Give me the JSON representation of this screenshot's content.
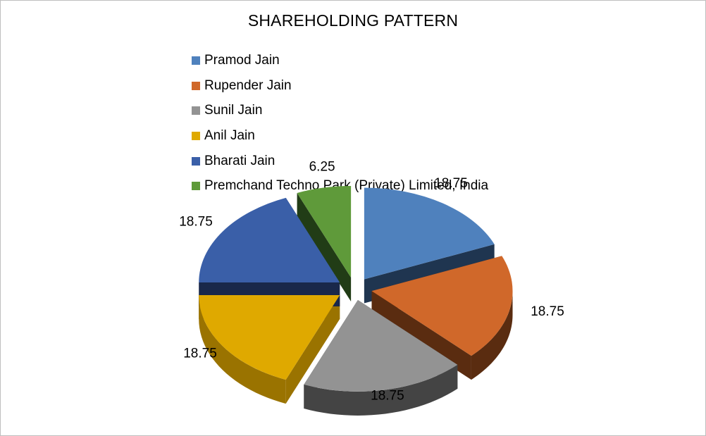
{
  "chart_data": {
    "type": "pie",
    "title": "SHAREHOLDING PATTERN",
    "three_d": true,
    "exploded": true,
    "legend_position": "top",
    "categories": [
      "Pramod Jain",
      "Rupender Jain",
      "Sunil Jain",
      "Anil Jain",
      "Bharati Jain",
      "Premchand Techno Park (Private) Limited, India"
    ],
    "values": [
      18.75,
      18.75,
      18.75,
      18.75,
      18.75,
      6.25
    ],
    "data_labels": [
      "18.75",
      "18.75",
      "18.75",
      "18.75",
      "18.75",
      "6.25"
    ],
    "colors": [
      "#4f81bd",
      "#d0682a",
      "#939393",
      "#dfa900",
      "#3a5fa8",
      "#5f9a3a"
    ],
    "side_colors": [
      "#1f3550",
      "#5a2c10",
      "#444444",
      "#9a7300",
      "#19284a",
      "#213c16"
    ]
  }
}
